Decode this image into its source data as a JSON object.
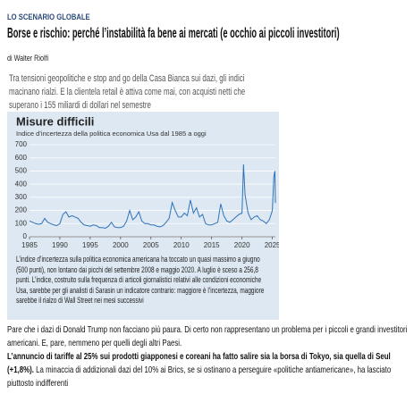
{
  "header": {
    "section": "LO SCENARIO GLOBALE",
    "title": "Borse e rischio: perché l’instabilità fa bene ai mercati (e occhio ai piccoli investitori)",
    "byline": "di Walter Riolfi",
    "lead": "Tra tensioni geopolitiche e stop and go della Casa Bianca sui dazi, gli indici macinano rialzi. E la clientela retail è attiva come mai, con acquisti netti che superano i 155 miliardi di dollari nel semestre"
  },
  "chart_data": {
    "type": "line",
    "title": "Misure difficili",
    "subtitle": "Indice d’incertezza della politica economica Usa dal 1985 a oggi",
    "color": "#2f72b8",
    "grid": true,
    "x": [
      1985,
      1985.5,
      1986,
      1986.5,
      1987,
      1987.5,
      1988,
      1988.5,
      1989,
      1989.5,
      1990,
      1990.5,
      1991,
      1991.5,
      1992,
      1992.5,
      1993,
      1993.5,
      1994,
      1994.5,
      1995,
      1995.5,
      1996,
      1996.5,
      1997,
      1997.5,
      1998,
      1998.5,
      1999,
      1999.5,
      2000,
      2000.5,
      2001,
      2001.5,
      2002,
      2002.5,
      2003,
      2003.5,
      2004,
      2004.5,
      2005,
      2005.5,
      2006,
      2006.5,
      2007,
      2007.5,
      2008,
      2008.5,
      2009,
      2009.5,
      2010,
      2010.5,
      2011,
      2011.5,
      2012,
      2012.5,
      2013,
      2013.5,
      2014,
      2014.5,
      2015,
      2015.5,
      2016,
      2016.5,
      2017,
      2017.5,
      2018,
      2018.5,
      2019,
      2019.5,
      2020,
      2020.25,
      2020.5,
      2021,
      2021.5,
      2022,
      2022.5,
      2023,
      2023.5,
      2024,
      2024.5,
      2025,
      2025.25,
      2025.42,
      2025.5
    ],
    "values": [
      120,
      110,
      100,
      95,
      100,
      140,
      110,
      100,
      90,
      85,
      100,
      170,
      190,
      150,
      160,
      150,
      140,
      110,
      90,
      85,
      80,
      90,
      85,
      70,
      70,
      65,
      80,
      110,
      75,
      70,
      70,
      80,
      120,
      200,
      130,
      150,
      190,
      120,
      100,
      100,
      90,
      90,
      80,
      75,
      85,
      110,
      140,
      260,
      200,
      150,
      150,
      180,
      160,
      280,
      180,
      220,
      150,
      170,
      100,
      90,
      90,
      100,
      110,
      250,
      160,
      120,
      110,
      130,
      150,
      170,
      180,
      550,
      320,
      180,
      130,
      150,
      160,
      130,
      120,
      100,
      130,
      200,
      460,
      500,
      257
    ],
    "xlim": [
      1985,
      2025.5
    ],
    "xticks": [
      1985,
      1990,
      1995,
      2000,
      2005,
      2010,
      2015,
      2020,
      2025
    ],
    "ylim": [
      0,
      700
    ],
    "yticks": [
      0,
      100,
      200,
      300,
      400,
      500,
      600,
      700
    ]
  },
  "caption": "L’indice d’incertezza sulla politica economica americana ha toccato un quasi massimo a giugno (500 punti), non lontano dai picchi del settembre 2008 e maggio 2020. A luglio è sceso a 256,8 punti. L’indice, costruito sulla frequenza di articoli giornalistici relativi alle condizioni economiche Usa, sarebbe per gli analisti di Sarasin un indicatore contrario: maggiore è l’incertezza, maggiore sarebbe il rialzo di Wall Street nei mesi successivi",
  "body": [
    {
      "text": "Pare che i dazi di Donald Trump non facciano più paura. Di certo non rappresentano un problema per i piccoli e grandi investitori americani. E, pare, nemmeno per quelli degli altri Paesi."
    },
    {
      "bold": "L’annuncio di tariffe al 25% sui prodotti giapponesi e coreani ha fatto salire sia la borsa di Tokyo, sia quella di Seul (+1,8%).",
      "text": "La minaccia di addizionali dazi del 10% ai Brics, se si ostinano a perseguire «politiche antiamericane», ha lasciato piuttosto indifferenti"
    }
  ]
}
